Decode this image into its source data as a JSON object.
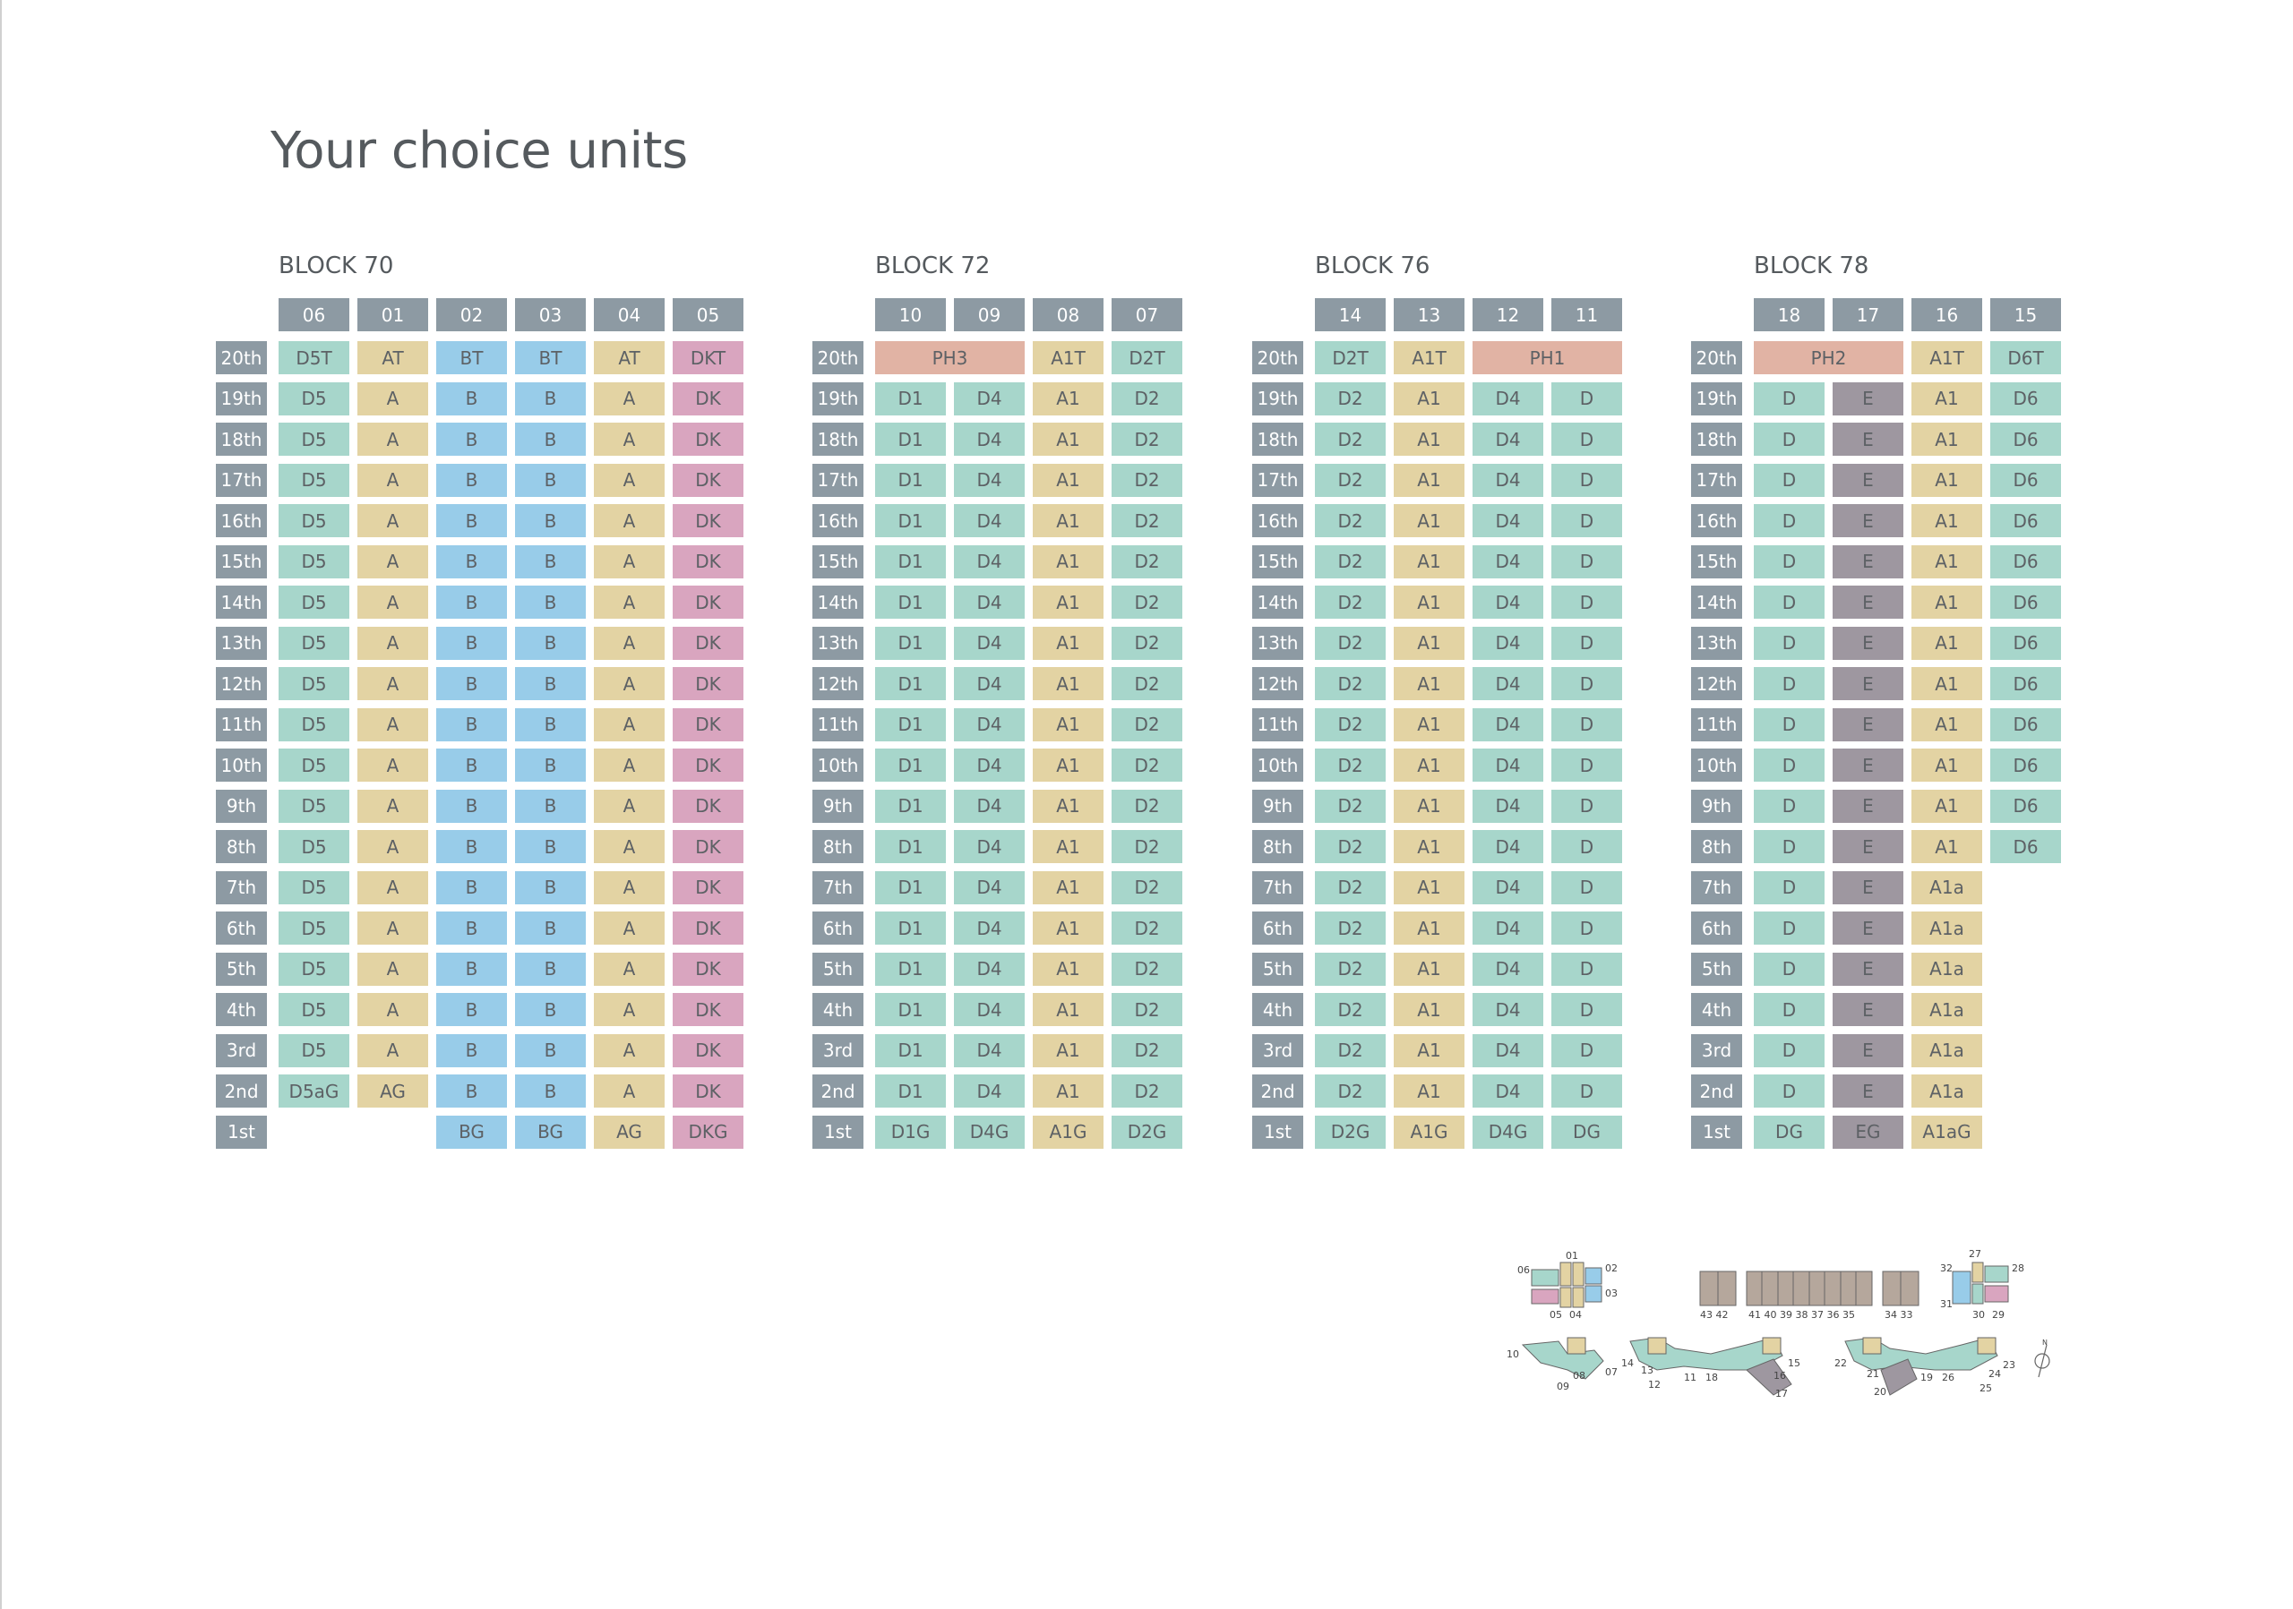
{
  "title": "Your choice units",
  "colors": {
    "header": "#8d9aa3",
    "teal": "#a7d6cb",
    "beige": "#e3d3a3",
    "blue": "#98cce9",
    "pink": "#d9a5bf",
    "salmon": "#e1b3a4",
    "purple": "#9e97a0"
  },
  "floors": [
    "20th",
    "19th",
    "18th",
    "17th",
    "16th",
    "15th",
    "14th",
    "13th",
    "12th",
    "11th",
    "10th",
    "9th",
    "8th",
    "7th",
    "6th",
    "5th",
    "4th",
    "3rd",
    "2nd",
    "1st"
  ],
  "blocks": [
    {
      "name": "BLOCK 70",
      "units": [
        "06",
        "01",
        "02",
        "03",
        "04",
        "05"
      ],
      "columns": [
        {
          "color": "teal",
          "cells": [
            "D5T",
            "D5",
            "D5",
            "D5",
            "D5",
            "D5",
            "D5",
            "D5",
            "D5",
            "D5",
            "D5",
            "D5",
            "D5",
            "D5",
            "D5",
            "D5",
            "D5",
            "D5",
            "D5aG",
            null
          ]
        },
        {
          "color": "beige",
          "cells": [
            "AT",
            "A",
            "A",
            "A",
            "A",
            "A",
            "A",
            "A",
            "A",
            "A",
            "A",
            "A",
            "A",
            "A",
            "A",
            "A",
            "A",
            "A",
            "AG",
            null
          ]
        },
        {
          "color": "blue",
          "cells": [
            "BT",
            "B",
            "B",
            "B",
            "B",
            "B",
            "B",
            "B",
            "B",
            "B",
            "B",
            "B",
            "B",
            "B",
            "B",
            "B",
            "B",
            "B",
            "B",
            "BG"
          ]
        },
        {
          "color": "blue",
          "cells": [
            "BT",
            "B",
            "B",
            "B",
            "B",
            "B",
            "B",
            "B",
            "B",
            "B",
            "B",
            "B",
            "B",
            "B",
            "B",
            "B",
            "B",
            "B",
            "B",
            "BG"
          ]
        },
        {
          "color": "beige",
          "cells": [
            "AT",
            "A",
            "A",
            "A",
            "A",
            "A",
            "A",
            "A",
            "A",
            "A",
            "A",
            "A",
            "A",
            "A",
            "A",
            "A",
            "A",
            "A",
            "A",
            "AG"
          ]
        },
        {
          "color": "pink",
          "cells": [
            "DKT",
            "DK",
            "DK",
            "DK",
            "DK",
            "DK",
            "DK",
            "DK",
            "DK",
            "DK",
            "DK",
            "DK",
            "DK",
            "DK",
            "DK",
            "DK",
            "DK",
            "DK",
            "DK",
            "DKG"
          ]
        }
      ],
      "spans": [],
      "corner": []
    },
    {
      "name": "BLOCK 72",
      "units": [
        "10",
        "09",
        "08",
        "07"
      ],
      "columns": [
        {
          "color": "teal",
          "cells": [
            null,
            "D1",
            "D1",
            "D1",
            "D1",
            "D1",
            "D1",
            "D1",
            "D1",
            "D1",
            "D1",
            "D1",
            "D1",
            "D1",
            "D1",
            "D1",
            "D1",
            "D1",
            "D1",
            "D1G"
          ]
        },
        {
          "color": "teal",
          "cells": [
            null,
            "D4",
            "D4",
            "D4",
            "D4",
            "D4",
            "D4",
            "D4",
            "D4",
            "D4",
            "D4",
            "D4",
            "D4",
            "D4",
            "D4",
            "D4",
            "D4",
            "D4",
            "D4",
            "D4G"
          ]
        },
        {
          "color": "beige",
          "cells": [
            "A1T",
            "A1",
            "A1",
            "A1",
            "A1",
            "A1",
            "A1",
            "A1",
            "A1",
            "A1",
            "A1",
            "A1",
            "A1",
            "A1",
            "A1",
            "A1",
            "A1",
            "A1",
            "A1",
            "A1G"
          ]
        },
        {
          "color": "teal",
          "cells": [
            "D2T",
            "D2",
            "D2",
            "D2",
            "D2",
            "D2",
            "D2",
            "D2",
            "D2",
            "D2",
            "D2",
            "D2",
            "D2",
            "D2",
            "D2",
            "D2",
            "D2",
            "D2",
            "D2",
            "D2G"
          ]
        }
      ],
      "spans": [
        {
          "label": "PH3",
          "col": 0,
          "width": 2,
          "color": "salmon"
        }
      ]
    },
    {
      "name": "BLOCK 76",
      "units": [
        "14",
        "13",
        "12",
        "11"
      ],
      "columns": [
        {
          "color": "teal",
          "cells": [
            "D2T",
            "D2",
            "D2",
            "D2",
            "D2",
            "D2",
            "D2",
            "D2",
            "D2",
            "D2",
            "D2",
            "D2",
            "D2",
            "D2",
            "D2",
            "D2",
            "D2",
            "D2",
            "D2",
            "D2G"
          ]
        },
        {
          "color": "beige",
          "cells": [
            "A1T",
            "A1",
            "A1",
            "A1",
            "A1",
            "A1",
            "A1",
            "A1",
            "A1",
            "A1",
            "A1",
            "A1",
            "A1",
            "A1",
            "A1",
            "A1",
            "A1",
            "A1",
            "A1",
            "A1G"
          ]
        },
        {
          "color": "teal",
          "cells": [
            null,
            "D4",
            "D4",
            "D4",
            "D4",
            "D4",
            "D4",
            "D4",
            "D4",
            "D4",
            "D4",
            "D4",
            "D4",
            "D4",
            "D4",
            "D4",
            "D4",
            "D4",
            "D4",
            "D4G"
          ]
        },
        {
          "color": "teal",
          "cells": [
            null,
            "D",
            "D",
            "D",
            "D",
            "D",
            "D",
            "D",
            "D",
            "D",
            "D",
            "D",
            "D",
            "D",
            "D",
            "D",
            "D",
            "D",
            "D",
            "DG"
          ]
        }
      ],
      "spans": [
        {
          "label": "PH1",
          "col": 2,
          "width": 2,
          "color": "salmon"
        }
      ]
    },
    {
      "name": "BLOCK 78",
      "units": [
        "18",
        "17",
        "16",
        "15"
      ],
      "columns": [
        {
          "color": "teal",
          "cells": [
            null,
            "D",
            "D",
            "D",
            "D",
            "D",
            "D",
            "D",
            "D",
            "D",
            "D",
            "D",
            "D",
            "D",
            "D",
            "D",
            "D",
            "D",
            "D",
            "DG"
          ]
        },
        {
          "color": "purple",
          "cells": [
            null,
            "E",
            "E",
            "E",
            "E",
            "E",
            "E",
            "E",
            "E",
            "E",
            "E",
            "E",
            "E",
            "E",
            "E",
            "E",
            "E",
            "E",
            "E",
            "EG"
          ]
        },
        {
          "color": "beige",
          "cells": [
            "A1T",
            "A1",
            "A1",
            "A1",
            "A1",
            "A1",
            "A1",
            "A1",
            "A1",
            "A1",
            "A1",
            "A1",
            "A1",
            "A1a",
            "A1a",
            "A1a",
            "A1a",
            "A1a",
            "A1a",
            "A1aG"
          ]
        },
        {
          "color": "teal",
          "cells": [
            "D6T",
            "D6",
            "D6",
            "D6",
            "D6",
            "D6",
            "D6",
            "D6",
            "D6",
            "D6",
            "D6",
            "D6",
            "D6",
            null,
            null,
            null,
            null,
            null,
            null,
            null
          ]
        }
      ],
      "spans": [
        {
          "label": "PH2",
          "col": 0,
          "width": 2,
          "color": "salmon"
        }
      ]
    }
  ],
  "keyplan": {
    "labels": [
      "01",
      "02",
      "03",
      "04",
      "05",
      "06",
      "07",
      "08",
      "09",
      "10",
      "11",
      "12",
      "13",
      "14",
      "15",
      "16",
      "17",
      "18",
      "19",
      "20",
      "21",
      "22",
      "23",
      "24",
      "25",
      "26",
      "27",
      "28",
      "29",
      "30",
      "31",
      "32",
      "33",
      "34",
      "35",
      "36",
      "37",
      "38",
      "39",
      "40",
      "41",
      "42",
      "43"
    ],
    "north_icon": "north-arrow-icon"
  }
}
